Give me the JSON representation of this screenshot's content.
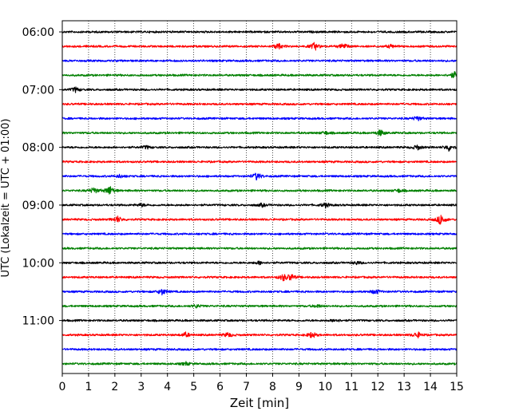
{
  "chart_data": {
    "type": "line",
    "title": "",
    "xlabel": "Zeit  [min]",
    "ylabel": "UTC (Lokalzeit = UTC + 01:00)",
    "xlim": [
      0,
      15
    ],
    "x_ticks": [
      "0",
      "1",
      "2",
      "3",
      "4",
      "5",
      "6",
      "7",
      "8",
      "9",
      "10",
      "11",
      "12",
      "13",
      "14",
      "15"
    ],
    "y_ticks": [
      "06:00",
      "07:00",
      "08:00",
      "09:00",
      "10:00",
      "11:00"
    ],
    "trace_interval_min": 15,
    "start_time": "06:00",
    "trace_colors": [
      "#000000",
      "#ff0000",
      "#0000ff",
      "#008000"
    ],
    "grid": "vertical dotted",
    "series": [
      {
        "start": "06:00",
        "color": "#000000",
        "events": []
      },
      {
        "start": "06:15",
        "color": "#ff0000",
        "events": [
          {
            "t": 8.2,
            "amp": 4
          },
          {
            "t": 9.6,
            "amp": 5
          },
          {
            "t": 10.7,
            "amp": 4
          },
          {
            "t": 12.5,
            "amp": 2
          }
        ]
      },
      {
        "start": "06:30",
        "color": "#0000ff",
        "events": []
      },
      {
        "start": "06:45",
        "color": "#008000",
        "events": [
          {
            "t": 14.9,
            "amp": 4
          }
        ]
      },
      {
        "start": "07:00",
        "color": "#000000",
        "events": [
          {
            "t": 0.5,
            "amp": 3
          }
        ]
      },
      {
        "start": "07:15",
        "color": "#ff0000",
        "events": []
      },
      {
        "start": "07:30",
        "color": "#0000ff",
        "events": [
          {
            "t": 13.5,
            "amp": 3
          }
        ]
      },
      {
        "start": "07:45",
        "color": "#008000",
        "events": [
          {
            "t": 12.1,
            "amp": 4
          },
          {
            "t": 10,
            "amp": 2
          }
        ]
      },
      {
        "start": "08:00",
        "color": "#000000",
        "events": [
          {
            "t": 3.2,
            "amp": 2
          },
          {
            "t": 13.5,
            "amp": 3
          },
          {
            "t": 14.7,
            "amp": 4
          }
        ]
      },
      {
        "start": "08:15",
        "color": "#ff0000",
        "events": []
      },
      {
        "start": "08:30",
        "color": "#0000ff",
        "events": [
          {
            "t": 7.4,
            "amp": 5
          },
          {
            "t": 2.2,
            "amp": 2
          }
        ]
      },
      {
        "start": "08:45",
        "color": "#008000",
        "events": [
          {
            "t": 1.2,
            "amp": 4
          },
          {
            "t": 1.8,
            "amp": 6
          },
          {
            "t": 12.8,
            "amp": 2
          }
        ]
      },
      {
        "start": "09:00",
        "color": "#000000",
        "events": [
          {
            "t": 3.0,
            "amp": 2
          },
          {
            "t": 10,
            "amp": 3
          },
          {
            "t": 7.6,
            "amp": 2
          }
        ]
      },
      {
        "start": "09:15",
        "color": "#ff0000",
        "events": [
          {
            "t": 2.1,
            "amp": 4
          },
          {
            "t": 14.4,
            "amp": 7
          }
        ]
      },
      {
        "start": "09:30",
        "color": "#0000ff",
        "events": []
      },
      {
        "start": "09:45",
        "color": "#008000",
        "events": []
      },
      {
        "start": "10:00",
        "color": "#000000",
        "events": [
          {
            "t": 7.5,
            "amp": 2
          },
          {
            "t": 11.2,
            "amp": 2
          }
        ]
      },
      {
        "start": "10:15",
        "color": "#ff0000",
        "events": [
          {
            "t": 8.4,
            "amp": 4
          },
          {
            "t": 8.7,
            "amp": 4
          }
        ]
      },
      {
        "start": "10:30",
        "color": "#0000ff",
        "events": [
          {
            "t": 3.8,
            "amp": 4
          },
          {
            "t": 11.9,
            "amp": 3
          }
        ]
      },
      {
        "start": "10:45",
        "color": "#008000",
        "events": [
          {
            "t": 5.1,
            "amp": 2
          },
          {
            "t": 9.7,
            "amp": 2
          }
        ]
      },
      {
        "start": "11:00",
        "color": "#000000",
        "events": [
          {
            "t": 10.4,
            "amp": 2
          }
        ]
      },
      {
        "start": "11:15",
        "color": "#ff0000",
        "events": [
          {
            "t": 4.7,
            "amp": 3
          },
          {
            "t": 6.3,
            "amp": 3
          },
          {
            "t": 9.5,
            "amp": 4
          },
          {
            "t": 13.5,
            "amp": 4
          }
        ]
      },
      {
        "start": "11:30",
        "color": "#0000ff",
        "events": []
      },
      {
        "start": "11:45",
        "color": "#008000",
        "events": [
          {
            "t": 4.7,
            "amp": 2
          }
        ]
      }
    ]
  }
}
